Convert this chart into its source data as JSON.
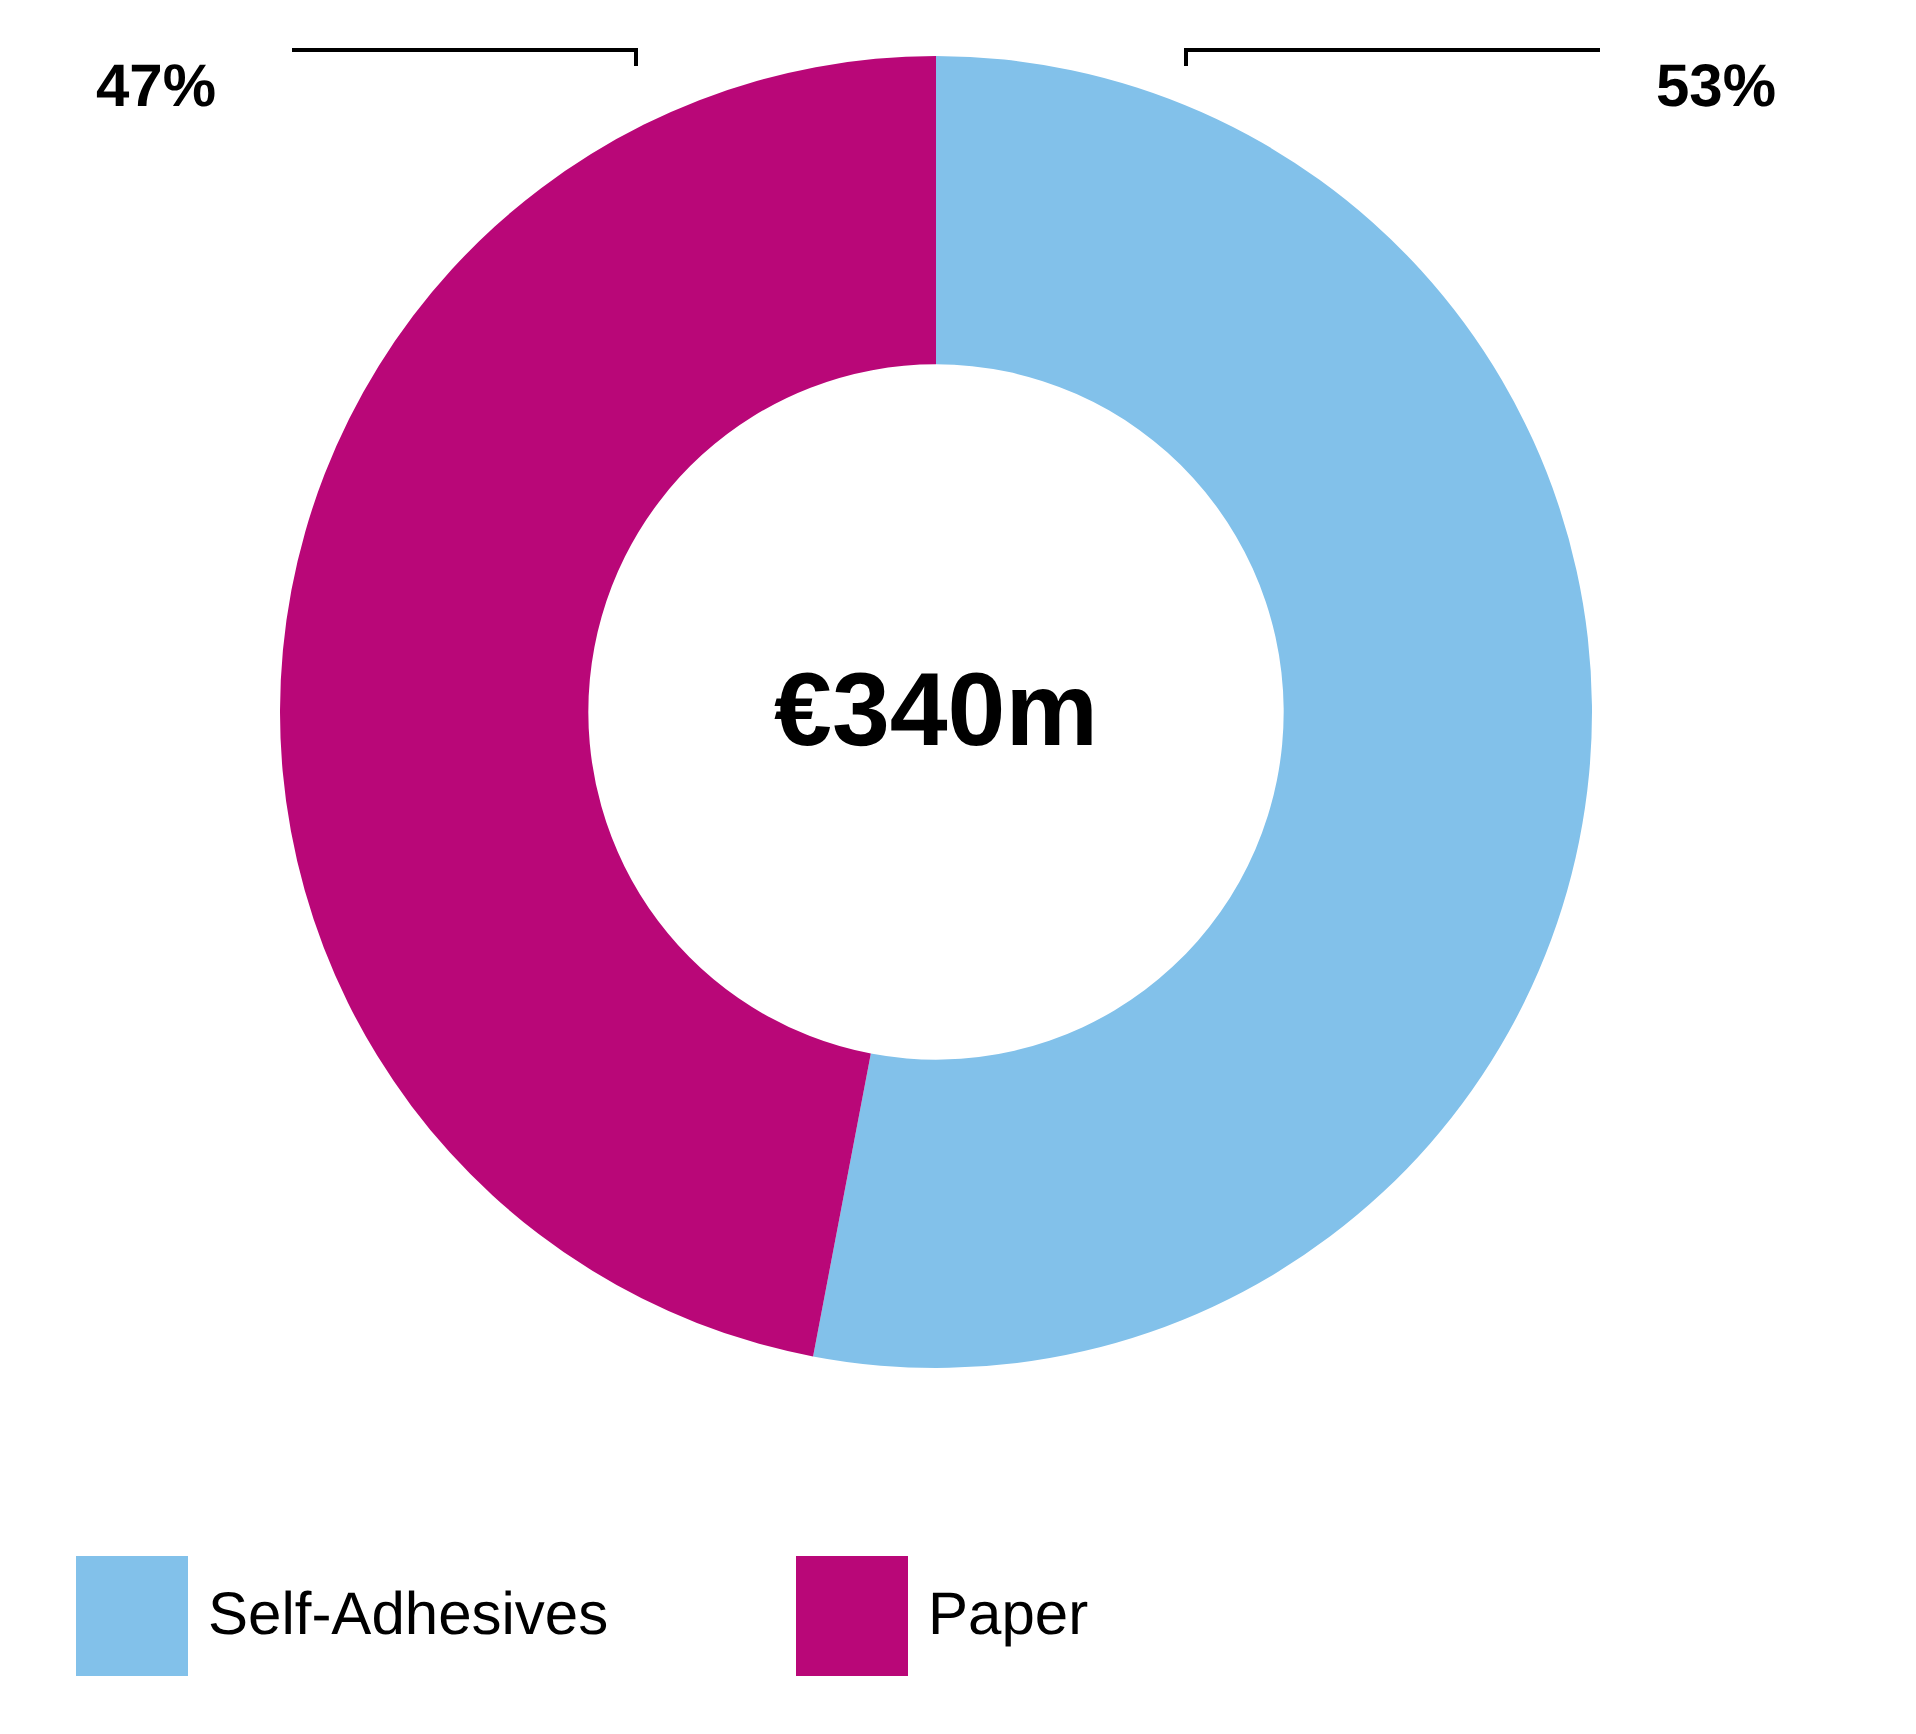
{
  "chart_data": {
    "type": "donut",
    "categories": [
      "Self-Adhesives",
      "Paper"
    ],
    "values": [
      53,
      47
    ],
    "colors": [
      "#82c1ea",
      "#b90778"
    ],
    "value_labels": [
      "53%",
      "47%"
    ],
    "annotations": [
      "€340m"
    ],
    "legend": "bottom left"
  }
}
